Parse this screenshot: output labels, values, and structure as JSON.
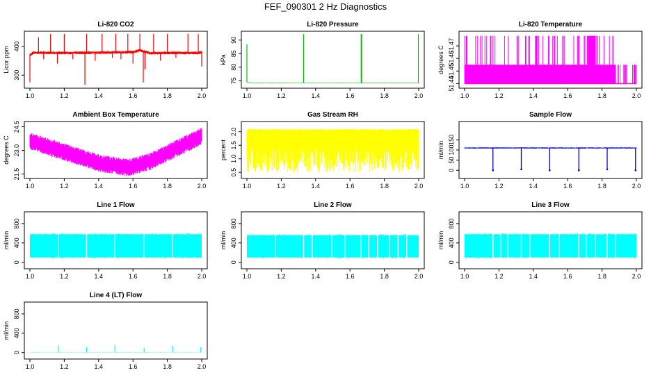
{
  "figure_title": "FEF_090301  2 Hz Diagnostics",
  "colors": {
    "red": "#ff0000",
    "green": "#00c000",
    "magenta": "#ff00ff",
    "yellow": "#ffff00",
    "blue": "#0000cc",
    "cyan": "#00ffff"
  },
  "chart_data": [
    {
      "type": "line",
      "title": "Li-820 CO2",
      "ylabel": "Licor ppm",
      "color": "#ff0000",
      "xlim": [
        1.0,
        2.0
      ],
      "ylim": [
        262,
        445
      ],
      "xticks": [
        "1.0",
        "1.2",
        "1.4",
        "1.6",
        "1.8",
        "2.0"
      ],
      "xtick_values": [
        1.0,
        1.2,
        1.4,
        1.6,
        1.8,
        2.0
      ],
      "yticks": [
        "300",
        "400"
      ],
      "ytick_values": [
        300,
        400
      ],
      "baseline": [
        [
          1.0,
          370
        ],
        [
          1.02,
          378
        ],
        [
          1.2,
          377
        ],
        [
          1.4,
          378
        ],
        [
          1.6,
          380
        ],
        [
          1.64,
          386
        ],
        [
          1.7,
          376
        ],
        [
          1.8,
          377
        ],
        [
          1.98,
          377
        ],
        [
          2.0,
          379
        ]
      ],
      "band": 5,
      "spikes": [
        [
          1.0,
          275
        ],
        [
          1.05,
          432
        ],
        [
          1.08,
          355
        ],
        [
          1.12,
          443
        ],
        [
          1.16,
          340
        ],
        [
          1.2,
          443
        ],
        [
          1.25,
          355
        ],
        [
          1.32,
          267
        ],
        [
          1.33,
          443
        ],
        [
          1.38,
          350
        ],
        [
          1.42,
          443
        ],
        [
          1.48,
          360
        ],
        [
          1.5,
          443
        ],
        [
          1.53,
          355
        ],
        [
          1.57,
          443
        ],
        [
          1.6,
          340
        ],
        [
          1.64,
          443
        ],
        [
          1.66,
          275
        ],
        [
          1.67,
          320
        ],
        [
          1.72,
          443
        ],
        [
          1.76,
          350
        ],
        [
          1.8,
          443
        ],
        [
          1.85,
          360
        ],
        [
          1.92,
          443
        ],
        [
          1.98,
          443
        ],
        [
          2.0,
          330
        ]
      ],
      "grid": false
    },
    {
      "type": "line",
      "title": "Li-820 Pressure",
      "ylabel": "kPa",
      "color": "#00c000",
      "xlim": [
        1.0,
        2.0
      ],
      "ylim": [
        73,
        92.5
      ],
      "xticks": [
        "1.0",
        "1.2",
        "1.4",
        "1.6",
        "1.8",
        "2.0"
      ],
      "xtick_values": [
        1.0,
        1.2,
        1.4,
        1.6,
        1.8,
        2.0
      ],
      "yticks": [
        "75",
        "80",
        "85",
        "90"
      ],
      "ytick_values": [
        75,
        80,
        85,
        90
      ],
      "baseline": [
        [
          1.0,
          74.5
        ],
        [
          1.02,
          74.2
        ],
        [
          2.0,
          74.1
        ]
      ],
      "band": 0.1,
      "spikes": [
        [
          1.0,
          88.5
        ],
        [
          1.33,
          92.2
        ],
        [
          1.665,
          92.2
        ],
        [
          1.668,
          92.2
        ],
        [
          1.998,
          92.2
        ]
      ],
      "grid": false
    },
    {
      "type": "line",
      "title": "Li-820 Temperature",
      "ylabel": "degrees C",
      "color": "#ff00ff",
      "xlim": [
        1.0,
        2.0
      ],
      "ylim": [
        51.438,
        51.48
      ],
      "xticks": [
        "1.0",
        "1.2",
        "1.4",
        "1.6",
        "1.8",
        "2.0"
      ],
      "xtick_values": [
        1.0,
        1.2,
        1.4,
        1.6,
        1.8,
        2.0
      ],
      "yticks": [
        "51.44",
        "51.45",
        "51.46",
        "51.47"
      ],
      "ytick_values": [
        51.44,
        51.45,
        51.46,
        51.47
      ],
      "digital_low": 51.44,
      "digital_mid": 51.455,
      "digital_high": 51.478,
      "mid_range": [
        1.0,
        1.88
      ],
      "grid": false
    },
    {
      "type": "line",
      "title": "Ambient Box Temperature",
      "ylabel": "degrees C",
      "color": "#ff00ff",
      "xlim": [
        1.0,
        2.0
      ],
      "ylim": [
        21.35,
        24.7
      ],
      "xticks": [
        "1.0",
        "1.2",
        "1.4",
        "1.6",
        "1.8",
        "2.0"
      ],
      "xtick_values": [
        1.0,
        1.2,
        1.4,
        1.6,
        1.8,
        2.0
      ],
      "yticks": [
        "21.5",
        "23.0",
        "24.5"
      ],
      "ytick_values": [
        21.5,
        23.0,
        24.5
      ],
      "center": [
        [
          1.0,
          23.6
        ],
        [
          1.2,
          22.9
        ],
        [
          1.4,
          22.2
        ],
        [
          1.57,
          21.9
        ],
        [
          1.7,
          22.3
        ],
        [
          1.85,
          23.1
        ],
        [
          2.0,
          23.9
        ]
      ],
      "band": 0.55,
      "grid": false
    },
    {
      "type": "line",
      "title": "Gas Stream RH",
      "ylabel": "percent",
      "color": "#ffff00",
      "xlim": [
        1.0,
        2.0
      ],
      "ylim": [
        0.35,
        2.3
      ],
      "xticks": [
        "1.0",
        "1.2",
        "1.4",
        "1.6",
        "1.8",
        "2.0"
      ],
      "xtick_values": [
        1.0,
        1.2,
        1.4,
        1.6,
        1.8,
        2.0
      ],
      "yticks": [
        "0.5",
        "1.0",
        "1.5",
        "2.0"
      ],
      "ytick_values": [
        0.5,
        1.0,
        1.5,
        2.0
      ],
      "upper": 2.1,
      "lower": 0.5,
      "dense_bottom": 1.5,
      "grid": false
    },
    {
      "type": "line",
      "title": "Sample Flow",
      "ylabel": "ml/min",
      "color": "#0000cc",
      "xlim": [
        1.0,
        2.0
      ],
      "ylim": [
        -30,
        230
      ],
      "xticks": [
        "1.0",
        "1.2",
        "1.4",
        "1.6",
        "1.8",
        "2.0"
      ],
      "xtick_values": [
        1.0,
        1.2,
        1.4,
        1.6,
        1.8,
        2.0
      ],
      "yticks": [
        "0",
        "50",
        "100",
        "150"
      ],
      "ytick_values": [
        0,
        50,
        100,
        150
      ],
      "level": 110,
      "band": 3,
      "dips": [
        [
          1.165,
          0
        ],
        [
          1.33,
          5
        ],
        [
          1.495,
          0
        ],
        [
          1.665,
          0
        ],
        [
          1.83,
          5
        ],
        [
          1.995,
          0
        ]
      ],
      "grid": false
    },
    {
      "type": "line",
      "title": "Line 1 Flow",
      "ylabel": "ml/min",
      "color": "#00ffff",
      "xlim": [
        1.0,
        2.0
      ],
      "ylim": [
        -90,
        1000
      ],
      "xticks": [
        "1.0",
        "1.2",
        "1.4",
        "1.6",
        "1.8",
        "2.0"
      ],
      "xtick_values": [
        1.0,
        1.2,
        1.4,
        1.6,
        1.8,
        2.0
      ],
      "yticks": [
        "0",
        "400",
        "800"
      ],
      "ytick_values": [
        0,
        400,
        800
      ],
      "upper": 580,
      "lower": 100,
      "gaps": [
        1.165,
        1.33,
        1.495,
        1.665,
        1.83
      ],
      "grid": false
    },
    {
      "type": "line",
      "title": "Line 2 Flow",
      "ylabel": "ml/min",
      "color": "#00ffff",
      "xlim": [
        1.0,
        2.0
      ],
      "ylim": [
        -90,
        1000
      ],
      "xticks": [
        "1.0",
        "1.2",
        "1.4",
        "1.6",
        "1.8",
        "2.0"
      ],
      "xtick_values": [
        1.0,
        1.2,
        1.4,
        1.6,
        1.8,
        2.0
      ],
      "yticks": [
        "0",
        "400",
        "800"
      ],
      "ytick_values": [
        0,
        400,
        800
      ],
      "upper": 560,
      "lower": 100,
      "gaps": [
        1.165,
        1.33,
        1.38,
        1.495,
        1.57,
        1.665,
        1.71,
        1.76,
        1.83,
        1.88,
        1.93
      ],
      "grid": false
    },
    {
      "type": "line",
      "title": "Line 3 Flow",
      "ylabel": "ml/min",
      "color": "#00ffff",
      "xlim": [
        1.0,
        2.0
      ],
      "ylim": [
        -90,
        1000
      ],
      "xticks": [
        "1.0",
        "1.2",
        "1.4",
        "1.6",
        "1.8",
        "2.0"
      ],
      "xtick_values": [
        1.0,
        1.2,
        1.4,
        1.6,
        1.8,
        2.0
      ],
      "yticks": [
        "0",
        "400",
        "800"
      ],
      "ytick_values": [
        0,
        400,
        800
      ],
      "upper": 580,
      "lower": 100,
      "gaps": [
        1.165,
        1.21,
        1.25,
        1.33,
        1.38,
        1.495,
        1.55,
        1.665,
        1.71,
        1.76,
        1.83,
        1.88
      ],
      "grid": false
    },
    {
      "type": "line",
      "title": "Line 4 (LT) Flow",
      "ylabel": "ml/min",
      "color": "#00ffff",
      "xlim": [
        1.0,
        2.0
      ],
      "ylim": [
        -90,
        1000
      ],
      "xticks": [
        "1.0",
        "1.2",
        "1.4",
        "1.6",
        "1.8",
        "2.0"
      ],
      "xtick_values": [
        1.0,
        1.2,
        1.4,
        1.6,
        1.8,
        2.0
      ],
      "yticks": [
        "0",
        "400",
        "800"
      ],
      "ytick_values": [
        0,
        400,
        800
      ],
      "level": 5,
      "band": 3,
      "spikes": [
        [
          1.165,
          150
        ],
        [
          1.33,
          110
        ],
        [
          1.495,
          160
        ],
        [
          1.665,
          100
        ],
        [
          1.83,
          140
        ],
        [
          1.995,
          110
        ]
      ],
      "grid": false
    }
  ]
}
